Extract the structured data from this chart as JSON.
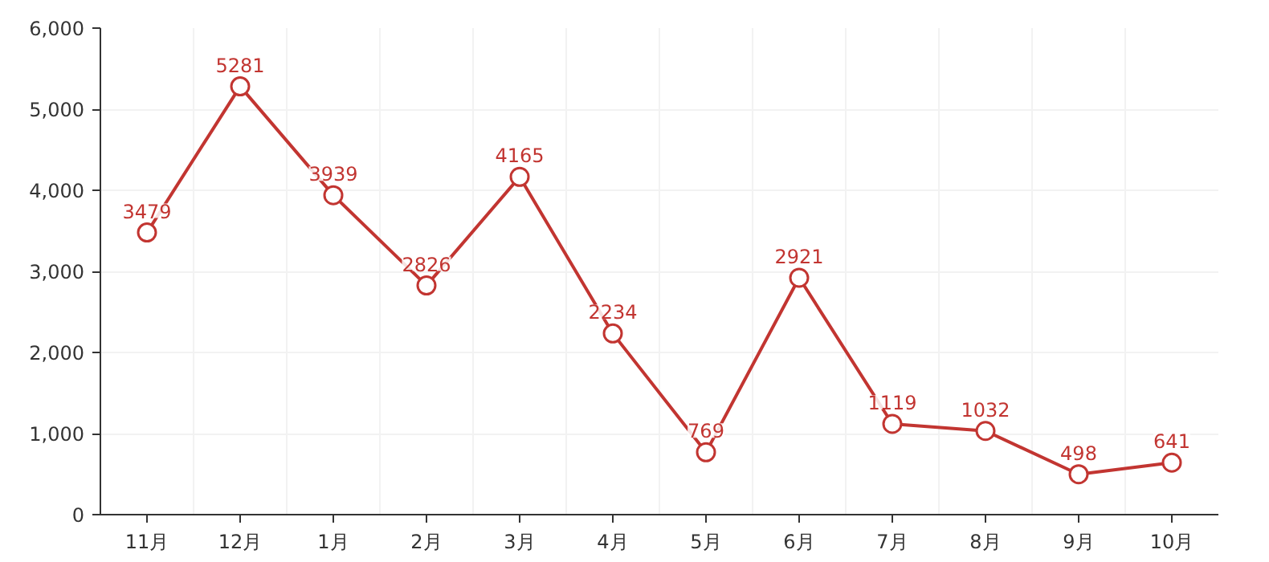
{
  "chart_data": {
    "type": "line",
    "categories": [
      "11月",
      "12月",
      "1月",
      "2月",
      "3月",
      "4月",
      "5月",
      "6月",
      "7月",
      "8月",
      "9月",
      "10月"
    ],
    "series": [
      {
        "color": "#c23531",
        "values": [
          3479,
          5281,
          3939,
          2826,
          4165,
          2234,
          769,
          2921,
          1119,
          1032,
          498,
          641
        ]
      }
    ],
    "ylim": [
      0,
      6000
    ],
    "yticks": [
      0,
      {
        "value": 1000,
        "label": "1,000"
      },
      {
        "value": 2000,
        "label": "2,000"
      },
      {
        "value": 3000,
        "label": "3,000"
      },
      {
        "value": 4000,
        "label": "4,000"
      },
      {
        "value": 5000,
        "label": "5,000"
      },
      {
        "value": 6000,
        "label": "6,000"
      }
    ],
    "grid": true,
    "marker": "circle",
    "line_style": "solid",
    "data_labels": true
  }
}
